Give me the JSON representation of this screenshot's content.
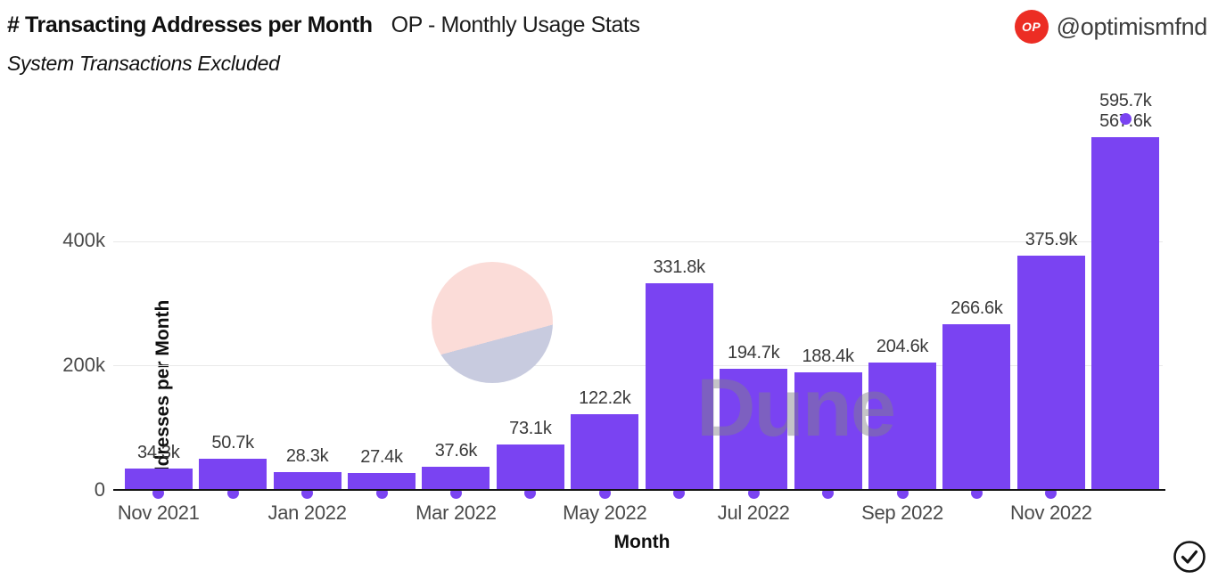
{
  "header": {
    "title": "# Transacting Addresses per Month",
    "title_suffix": "OP - Monthly Usage Stats",
    "subtitle": "System Transactions Excluded",
    "attribution": {
      "badge_label": "OP",
      "badge_color": "#ec2d24",
      "handle": "@optimismfnd"
    }
  },
  "watermark": {
    "text": "Dune"
  },
  "chart_data": {
    "type": "bar",
    "title": "# Transacting Addresses per Month",
    "subtitle": "System Transactions Excluded",
    "xlabel": "Month",
    "ylabel": "Addresses per Month",
    "bar_color": "#7a43f2",
    "grid": "horizontal",
    "legend_position": "none",
    "ylim_k": [
      0,
      620
    ],
    "y_gridlines_k": [
      200,
      400
    ],
    "y_ticks": [
      "0",
      "200k",
      "400k"
    ],
    "x_tick_labels": [
      "Nov 2021",
      "Jan 2022",
      "Mar 2022",
      "May 2022",
      "Jul 2022",
      "Sep 2022",
      "Nov 2022"
    ],
    "x_tick_every": 2,
    "categories": [
      "Nov 2021",
      "Dec 2021",
      "Jan 2022",
      "Feb 2022",
      "Mar 2022",
      "Apr 2022",
      "May 2022",
      "Jun 2022",
      "Jul 2022",
      "Aug 2022",
      "Sep 2022",
      "Oct 2022",
      "Nov 2022",
      "Dec 2022"
    ],
    "series": [
      {
        "name": "bar-addresses-per-month",
        "type": "bar",
        "values_k": [
          34.3,
          50.7,
          28.3,
          27.4,
          37.6,
          73.1,
          122.2,
          331.8,
          194.7,
          188.4,
          204.6,
          266.6,
          375.9,
          567.6
        ],
        "labels": [
          "34.3k",
          "50.7k",
          "28.3k",
          "27.4k",
          "37.6k",
          "73.1k",
          "122.2k",
          "331.8k",
          "194.7k",
          "188.4k",
          "204.6k",
          "266.6k",
          "375.9k",
          "567.6k"
        ]
      },
      {
        "name": "point-marker-series",
        "type": "scatter",
        "values_k": [
          0,
          0,
          0,
          0,
          0,
          0,
          0,
          0,
          0,
          0,
          0,
          0,
          0,
          595.7
        ],
        "last_point_label": "595.7k"
      }
    ]
  }
}
